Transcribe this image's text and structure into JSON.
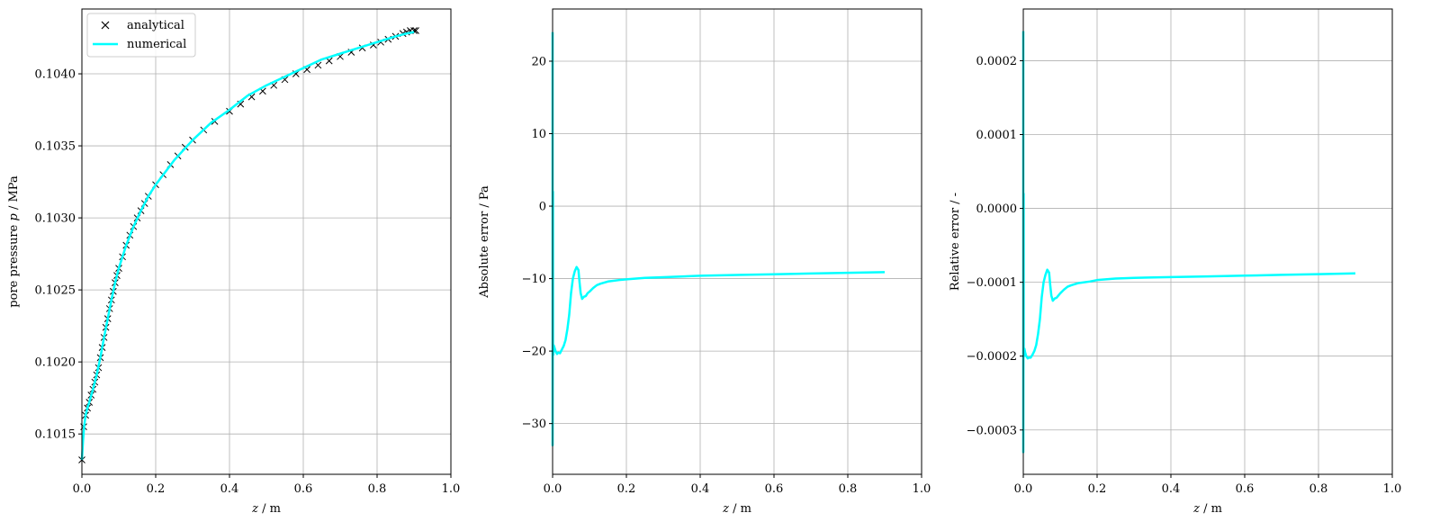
{
  "colors": {
    "analytical": "#000000",
    "numerical": "#00ffff",
    "grid": "#b0b0b0",
    "axes": "#000000"
  },
  "legend": {
    "analytical": "analytical",
    "numerical": "numerical",
    "placement": "upper-left"
  },
  "chart_data": [
    {
      "type": "line",
      "title": "",
      "xlabel": "z / m",
      "ylabel": "pore pressure p / MPa",
      "xlim": [
        0.0,
        1.0
      ],
      "ylim": [
        0.10122,
        0.10445
      ],
      "xticks": [
        0.0,
        0.2,
        0.4,
        0.6,
        0.8,
        1.0
      ],
      "xtick_labels": [
        "0.0",
        "0.2",
        "0.4",
        "0.6",
        "0.8",
        "1.0"
      ],
      "yticks": [
        0.1015,
        0.102,
        0.1025,
        0.103,
        0.1035,
        0.104
      ],
      "ytick_labels": [
        "0.1015",
        "0.1020",
        "0.1025",
        "0.1030",
        "0.1035",
        "0.1040"
      ],
      "grid": true,
      "legend_placement": "upper-left",
      "series": [
        {
          "name": "analytical",
          "marker": "x",
          "x": [
            0.0,
            0.005,
            0.01,
            0.015,
            0.02,
            0.025,
            0.03,
            0.035,
            0.04,
            0.045,
            0.05,
            0.055,
            0.06,
            0.065,
            0.07,
            0.075,
            0.08,
            0.085,
            0.09,
            0.095,
            0.1,
            0.11,
            0.12,
            0.13,
            0.14,
            0.15,
            0.16,
            0.17,
            0.18,
            0.2,
            0.22,
            0.24,
            0.26,
            0.28,
            0.3,
            0.33,
            0.36,
            0.4,
            0.43,
            0.46,
            0.49,
            0.52,
            0.55,
            0.58,
            0.61,
            0.64,
            0.67,
            0.7,
            0.73,
            0.76,
            0.79,
            0.81,
            0.83,
            0.85,
            0.87,
            0.88,
            0.89,
            0.9,
            0.905
          ],
          "y": [
            0.10132,
            0.10155,
            0.10163,
            0.10168,
            0.10172,
            0.10177,
            0.10181,
            0.10186,
            0.10191,
            0.10196,
            0.10203,
            0.1021,
            0.10217,
            0.10224,
            0.1023,
            0.10237,
            0.10243,
            0.10249,
            0.10255,
            0.1026,
            0.10265,
            0.10273,
            0.10281,
            0.10288,
            0.10294,
            0.103,
            0.10305,
            0.1031,
            0.10315,
            0.10323,
            0.1033,
            0.10337,
            0.10343,
            0.10349,
            0.10354,
            0.10361,
            0.10367,
            0.10374,
            0.10379,
            0.10384,
            0.10388,
            0.10392,
            0.10396,
            0.104,
            0.10403,
            0.10406,
            0.10409,
            0.10412,
            0.10415,
            0.10418,
            0.1042,
            0.10422,
            0.10424,
            0.10426,
            0.10428,
            0.10429,
            0.1043,
            0.1043,
            0.1043
          ]
        },
        {
          "name": "numerical",
          "x": [
            0.0,
            0.003,
            0.006,
            0.01,
            0.015,
            0.02,
            0.03,
            0.04,
            0.05,
            0.06,
            0.07,
            0.08,
            0.09,
            0.1,
            0.12,
            0.14,
            0.16,
            0.18,
            0.2,
            0.25,
            0.3,
            0.35,
            0.4,
            0.45,
            0.5,
            0.55,
            0.6,
            0.65,
            0.7,
            0.75,
            0.8,
            0.85,
            0.88,
            0.9
          ],
          "y": [
            0.10132,
            0.10145,
            0.10155,
            0.10163,
            0.10168,
            0.10172,
            0.10181,
            0.10191,
            0.10203,
            0.10217,
            0.1023,
            0.10243,
            0.10255,
            0.10265,
            0.10281,
            0.10294,
            0.10305,
            0.10315,
            0.10323,
            0.1034,
            0.10354,
            0.10366,
            0.10375,
            0.10385,
            0.10392,
            0.10398,
            0.10404,
            0.1041,
            0.10414,
            0.10418,
            0.10422,
            0.10426,
            0.10428,
            0.10429
          ]
        }
      ]
    },
    {
      "type": "line",
      "title": "",
      "xlabel": "z / m",
      "ylabel": "Absolute error / Pa",
      "xlim": [
        0.0,
        1.0
      ],
      "ylim": [
        -37.0,
        27.2
      ],
      "xticks": [
        0.0,
        0.2,
        0.4,
        0.6,
        0.8,
        1.0
      ],
      "xtick_labels": [
        "0.0",
        "0.2",
        "0.4",
        "0.6",
        "0.8",
        "1.0"
      ],
      "yticks": [
        -30,
        -20,
        -10,
        0,
        10,
        20
      ],
      "ytick_labels": [
        "−30",
        "−20",
        "−10",
        "0",
        "10",
        "20"
      ],
      "grid": true,
      "series": [
        {
          "name": "",
          "x": [
            0.0,
            0.0,
            0.001,
            0.001,
            0.002,
            0.003,
            0.005,
            0.008,
            0.012,
            0.015,
            0.02,
            0.025,
            0.03,
            0.035,
            0.04,
            0.045,
            0.05,
            0.055,
            0.06,
            0.065,
            0.07,
            0.073,
            0.076,
            0.08,
            0.085,
            0.09,
            0.095,
            0.1,
            0.11,
            0.12,
            0.13,
            0.15,
            0.18,
            0.2,
            0.25,
            0.3,
            0.4,
            0.5,
            0.6,
            0.7,
            0.8,
            0.9
          ],
          "y": [
            24.0,
            -33.0,
            2.0,
            -19.5,
            -20.5,
            -19.2,
            -19.5,
            -20.0,
            -20.4,
            -20.2,
            -20.3,
            -19.8,
            -19.3,
            -18.5,
            -17.0,
            -15.0,
            -12.0,
            -10.0,
            -9.0,
            -8.4,
            -8.8,
            -10.5,
            -12.0,
            -12.8,
            -12.5,
            -12.4,
            -12.0,
            -11.8,
            -11.3,
            -10.9,
            -10.7,
            -10.4,
            -10.2,
            -10.1,
            -9.9,
            -9.8,
            -9.6,
            -9.5,
            -9.4,
            -9.3,
            -9.2,
            -9.1
          ]
        }
      ]
    },
    {
      "type": "line",
      "title": "",
      "xlabel": "z / m",
      "ylabel": "Relative error / -",
      "xlim": [
        0.0,
        1.0
      ],
      "ylim": [
        -0.00036,
        0.00027
      ],
      "xticks": [
        0.0,
        0.2,
        0.4,
        0.6,
        0.8,
        1.0
      ],
      "xtick_labels": [
        "0.0",
        "0.2",
        "0.4",
        "0.6",
        "0.8",
        "1.0"
      ],
      "yticks": [
        -0.0003,
        -0.0002,
        -0.0001,
        0.0,
        0.0001,
        0.0002
      ],
      "ytick_labels": [
        "−0.0003",
        "−0.0002",
        "−0.0001",
        "0.0000",
        "0.0001",
        "0.0002"
      ],
      "grid": true,
      "series": [
        {
          "name": "",
          "x": [
            0.0,
            0.0,
            0.001,
            0.001,
            0.002,
            0.003,
            0.005,
            0.008,
            0.012,
            0.015,
            0.02,
            0.025,
            0.03,
            0.035,
            0.04,
            0.045,
            0.05,
            0.055,
            0.06,
            0.065,
            0.07,
            0.073,
            0.076,
            0.08,
            0.085,
            0.09,
            0.095,
            0.1,
            0.11,
            0.12,
            0.13,
            0.15,
            0.18,
            0.2,
            0.25,
            0.3,
            0.4,
            0.5,
            0.6,
            0.7,
            0.8,
            0.9
          ],
          "y": [
            0.00024,
            -0.00033,
            2e-05,
            -0.00019,
            -0.0002,
            -0.00019,
            -0.000195,
            -0.0002,
            -0.000203,
            -0.000202,
            -0.000202,
            -0.000198,
            -0.000193,
            -0.000185,
            -0.00017,
            -0.00015,
            -0.00012,
            -0.0001,
            -9e-05,
            -8.3e-05,
            -8.7e-05,
            -0.000104,
            -0.000118,
            -0.000125,
            -0.000122,
            -0.000121,
            -0.000118,
            -0.000115,
            -0.00011,
            -0.000106,
            -0.000104,
            -0.000101,
            -9.9e-05,
            -9.7e-05,
            -9.5e-05,
            -9.4e-05,
            -9.3e-05,
            -9.2e-05,
            -9.1e-05,
            -9e-05,
            -8.9e-05,
            -8.8e-05
          ]
        }
      ]
    }
  ]
}
